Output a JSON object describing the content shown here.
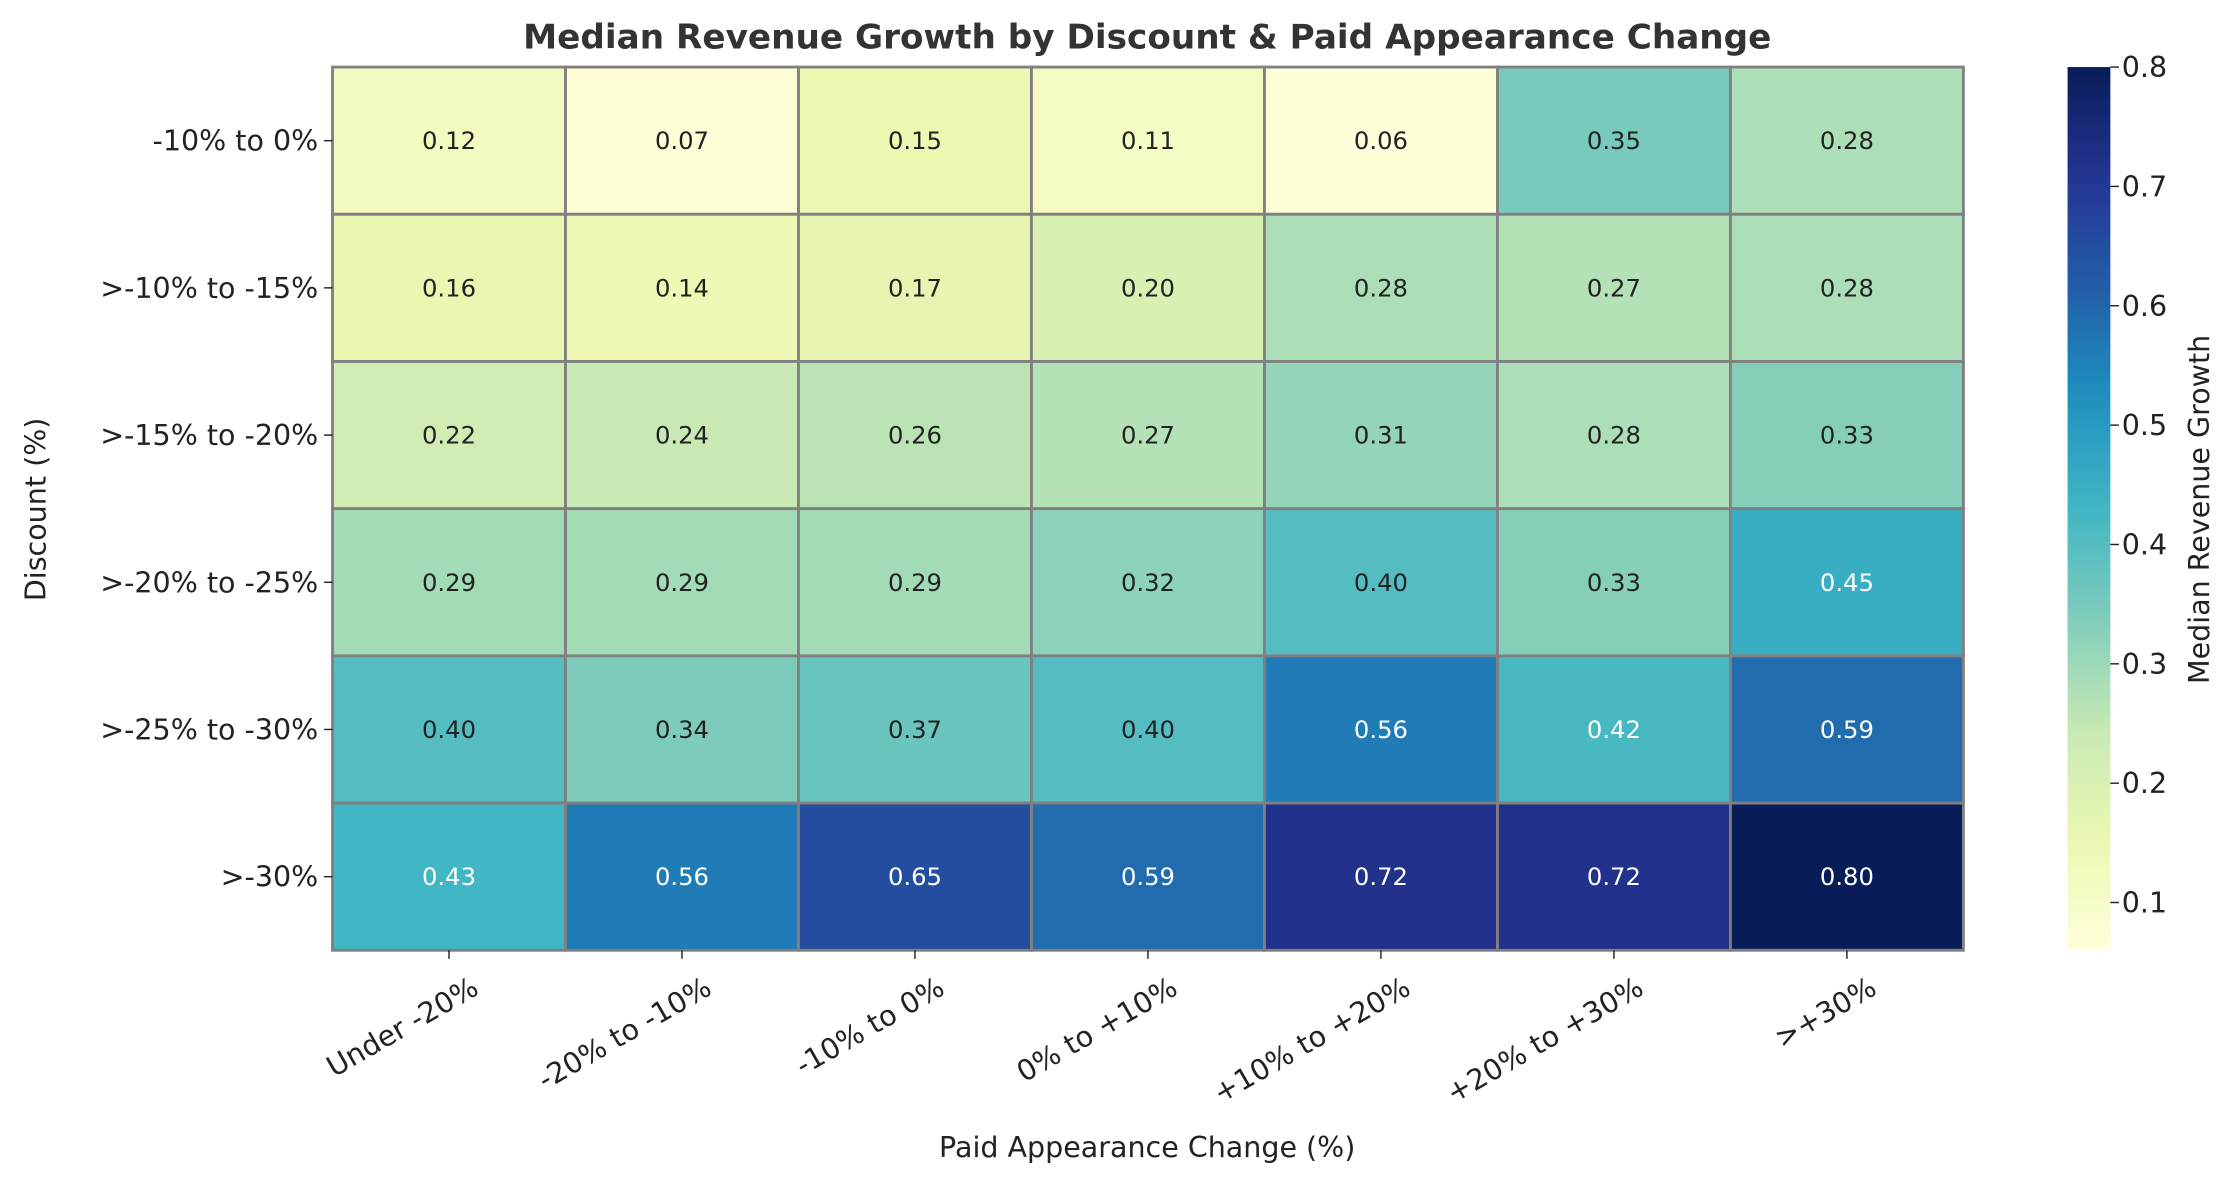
{
  "chart_data": {
    "type": "heatmap",
    "title": "Median Revenue Growth by Discount & Paid Appearance Change",
    "xlabel": "Paid Appearance Change (%)",
    "ylabel": "Discount (%)",
    "x_categories": [
      "Under -20%",
      "-20% to -10%",
      "-10% to 0%",
      "0% to +10%",
      "+10% to +20%",
      "+20% to +30%",
      ">+30%"
    ],
    "y_categories": [
      "-10% to 0%",
      ">-10% to -15%",
      ">-15% to -20%",
      ">-20% to -25%",
      ">-25% to -30%",
      ">-30%"
    ],
    "values": [
      [
        0.12,
        0.07,
        0.15,
        0.11,
        0.06,
        0.35,
        0.28
      ],
      [
        0.16,
        0.14,
        0.17,
        0.2,
        0.28,
        0.27,
        0.28
      ],
      [
        0.22,
        0.24,
        0.26,
        0.27,
        0.31,
        0.28,
        0.33
      ],
      [
        0.29,
        0.29,
        0.29,
        0.32,
        0.4,
        0.33,
        0.45
      ],
      [
        0.4,
        0.34,
        0.37,
        0.4,
        0.56,
        0.42,
        0.59
      ],
      [
        0.43,
        0.56,
        0.65,
        0.59,
        0.72,
        0.72,
        0.8
      ]
    ],
    "colormap": "YlGnBu",
    "colorbar": {
      "label": "Median Revenue Growth",
      "range": [
        0.06,
        0.8
      ],
      "ticks": [
        "0.1",
        "0.2",
        "0.3",
        "0.4",
        "0.5",
        "0.6",
        "0.7",
        "0.8"
      ]
    },
    "annotations": true,
    "cell_border_color": "#808080"
  }
}
